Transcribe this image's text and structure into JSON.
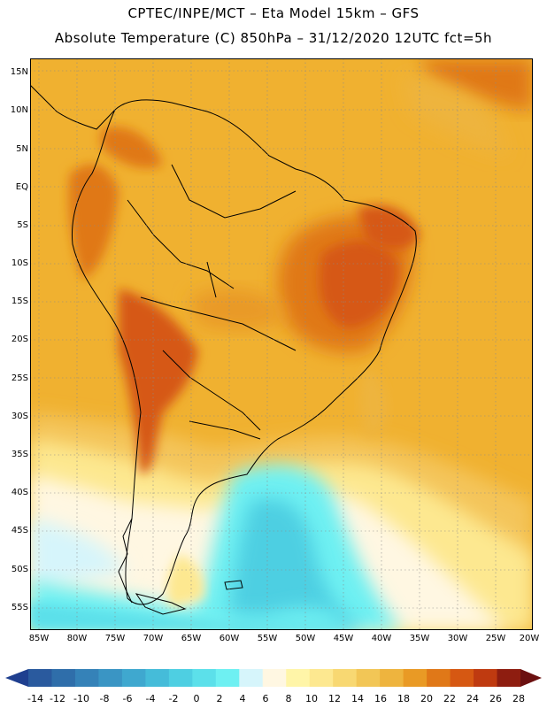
{
  "header": {
    "line1": "CPTEC/INPE/MCT –  Eta Model 15km – GFS",
    "line2": "Absolute Temperature (C) 850hPa – 31/12/2020 12UTC fct=5h"
  },
  "map": {
    "variable": "Absolute Temperature (C) 850hPa",
    "lat_labels": [
      "15N",
      "10N",
      "5N",
      "EQ",
      "5S",
      "10S",
      "15S",
      "20S",
      "25S",
      "30S",
      "35S",
      "40S",
      "45S",
      "50S",
      "55S"
    ],
    "lon_labels": [
      "85W",
      "80W",
      "75W",
      "70W",
      "65W",
      "60W",
      "55W",
      "50W",
      "45W",
      "40W",
      "35W",
      "30W",
      "25W",
      "20W"
    ]
  },
  "colorbar": {
    "labels": [
      "-14",
      "-12",
      "-10",
      "-8",
      "-6",
      "-4",
      "-2",
      "0",
      "2",
      "4",
      "6",
      "8",
      "10",
      "12",
      "14",
      "16",
      "18",
      "20",
      "22",
      "24",
      "26",
      "28"
    ],
    "colors": [
      "#1f3f8f",
      "#2a5a9e",
      "#2f6eaa",
      "#3582b8",
      "#3a95c4",
      "#3fa8cf",
      "#45bcd9",
      "#4ecfe2",
      "#5ce0ea",
      "#6ef0f2",
      "#d6f5fb",
      "#fff7e2",
      "#fff5a8",
      "#fde890",
      "#f8d872",
      "#f2c656",
      "#eeb43e",
      "#e99a25",
      "#e07818",
      "#d65812",
      "#bf3a10",
      "#8e1d10",
      "#6b1010"
    ]
  }
}
